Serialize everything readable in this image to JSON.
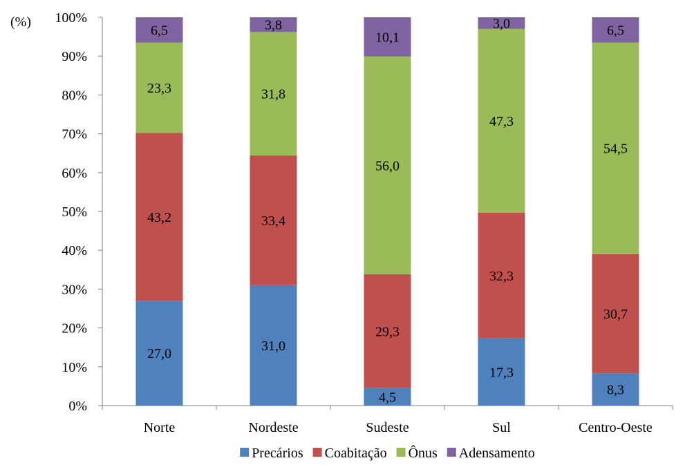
{
  "unit_label": "(%)",
  "chart_data": {
    "type": "bar",
    "stacked": true,
    "percent_stacked": true,
    "categories": [
      "Norte",
      "Nordeste",
      "Sudeste",
      "Sul",
      "Centro-Oeste"
    ],
    "series": [
      {
        "name": "Precários",
        "values": [
          27.0,
          31.0,
          4.5,
          17.3,
          8.3
        ],
        "labels": [
          "27,0",
          "31,0",
          "4,5",
          "17,3",
          "8,3"
        ],
        "color": "#4f81bd"
      },
      {
        "name": "Coabitação",
        "values": [
          43.2,
          33.4,
          29.3,
          32.3,
          30.7
        ],
        "labels": [
          "43,2",
          "33,4",
          "29,3",
          "32,3",
          "30,7"
        ],
        "color": "#c0504d"
      },
      {
        "name": "Ônus",
        "values": [
          23.3,
          31.8,
          56.0,
          47.3,
          54.5
        ],
        "labels": [
          "23,3",
          "31,8",
          "56,0",
          "47,3",
          "54,5"
        ],
        "color": "#9bbb59"
      },
      {
        "name": "Adensamento",
        "values": [
          6.5,
          3.8,
          10.1,
          3.0,
          6.5
        ],
        "labels": [
          "6,5",
          "3,8",
          "10,1",
          "3,0",
          "6,5"
        ],
        "color": "#8064a2"
      }
    ],
    "ylim": [
      0,
      100
    ],
    "yticks": [
      "0%",
      "10%",
      "20%",
      "30%",
      "40%",
      "50%",
      "60%",
      "70%",
      "80%",
      "90%",
      "100%"
    ],
    "grid": false,
    "legend_position": "bottom"
  }
}
